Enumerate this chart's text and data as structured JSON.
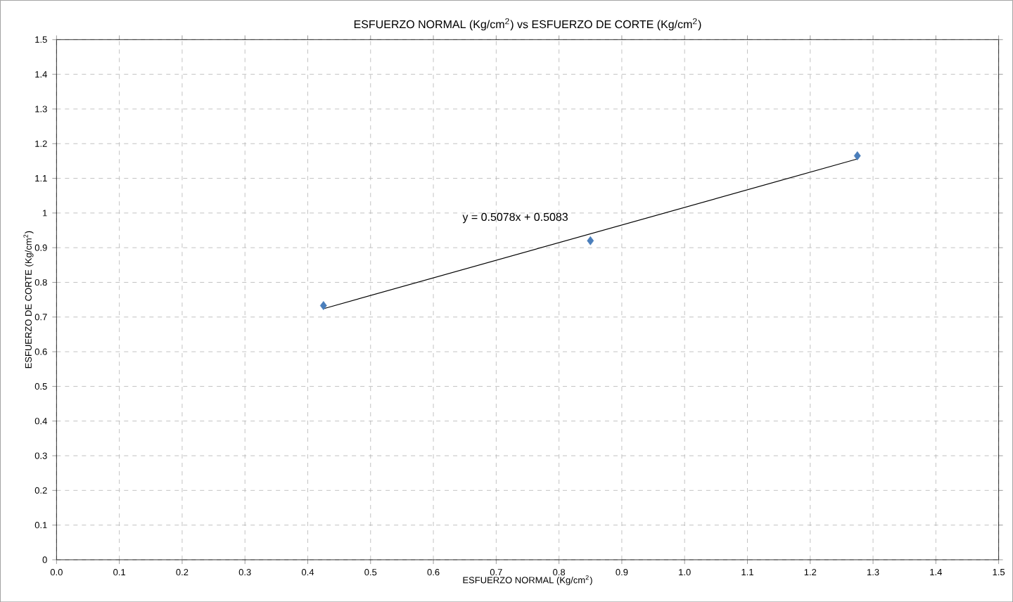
{
  "chart_data": {
    "type": "scatter",
    "title": "ESFUERZO NORMAL (Kg/cm$^{2}$) vs ESFUERZO DE CORTE (Kg/cm$^{2}$)",
    "xlabel": "ESFUERZO NORMAL (Kg/cm$^{2}$)",
    "ylabel": "ESFUERZO DE CORTE (Kg/cm$^{2}$)",
    "series": [
      {
        "color": "#4a7ebb",
        "marker": "diamond",
        "x": [
          0.425,
          0.85,
          1.275
        ],
        "values": [
          0.733,
          0.92,
          1.165
        ]
      },
      {
        "type": "line",
        "color": "#000000",
        "marker": "none",
        "line_style": "solid",
        "x": [
          0.425,
          1.275
        ],
        "values": [
          0.724,
          1.156
        ]
      }
    ],
    "annotations": [
      "y = 0.5078x + 0.5083"
    ],
    "xlim": [
      0,
      1.5
    ],
    "ylim": [
      0,
      1.5
    ],
    "xticks": [
      {
        "value": 0,
        "label": "0.0"
      },
      0.1,
      0.2,
      0.3,
      0.4,
      0.5,
      0.6,
      0.7,
      0.8,
      0.9,
      {
        "value": 1,
        "label": "1.0"
      },
      1.1,
      1.2,
      1.3,
      1.4,
      1.5
    ],
    "yticks": [
      0,
      0.1,
      0.2,
      0.3,
      0.4,
      0.5,
      0.6,
      0.7,
      0.8,
      0.9,
      1,
      1.1,
      1.2,
      1.3,
      1.4,
      1.5
    ],
    "grid": true
  }
}
